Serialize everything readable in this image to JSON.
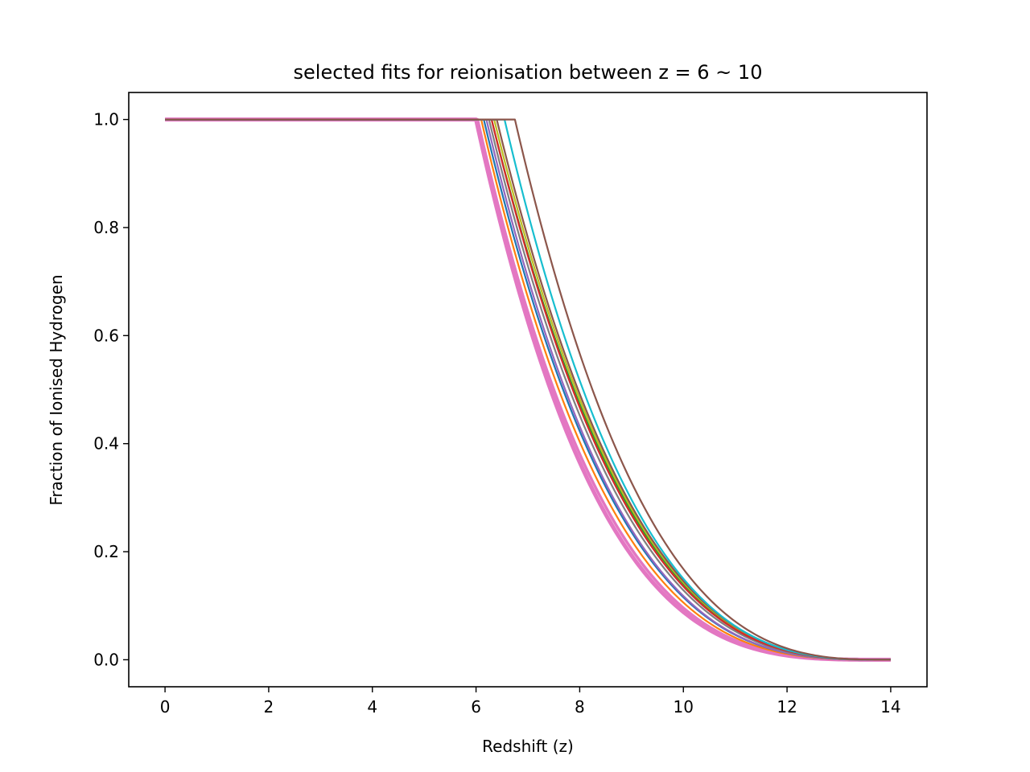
{
  "chart_data": {
    "type": "line",
    "title": "selected fits for reionisation between z = 6 ~ 10",
    "xlabel": "Redshift (z)",
    "ylabel": "Fraction of Ionised Hydrogen",
    "xlim": [
      -0.7,
      14.7
    ],
    "ylim": [
      -0.05,
      1.05
    ],
    "xticks": [
      0,
      2,
      4,
      6,
      8,
      10,
      12,
      14
    ],
    "xtick_labels": [
      "0",
      "2",
      "4",
      "6",
      "8",
      "10",
      "12",
      "14"
    ],
    "yticks": [
      0.0,
      0.2,
      0.4,
      0.6,
      0.8,
      1.0
    ],
    "ytick_labels": [
      "0.0",
      "0.2",
      "0.4",
      "0.6",
      "0.8",
      "1.0"
    ],
    "grid": false,
    "legend": "none",
    "x_range": [
      0,
      14
    ],
    "model": "x_ion = 1 for z <= z_re; x_ion = ((14 - z)/(14 - z_re))^p for z > z_re",
    "series": [
      {
        "color": "#e377c2",
        "z_re": 6.0,
        "p": 3.5,
        "width": 5.0
      },
      {
        "color": "#e377c2",
        "z_re": 6.03,
        "p": 3.4,
        "width": 3.5
      },
      {
        "color": "#ff7f0e",
        "z_re": 6.1,
        "p": 3.3,
        "width": 2.2
      },
      {
        "color": "#1f77b4",
        "z_re": 6.15,
        "p": 3.2,
        "width": 2.2
      },
      {
        "color": "#9467bd",
        "z_re": 6.2,
        "p": 3.2,
        "width": 2.2
      },
      {
        "color": "#7f7f7f",
        "z_re": 6.25,
        "p": 3.1,
        "width": 2.2
      },
      {
        "color": "#2ca02c",
        "z_re": 6.3,
        "p": 3.0,
        "width": 2.2
      },
      {
        "color": "#bcbd22",
        "z_re": 6.35,
        "p": 3.0,
        "width": 2.2
      },
      {
        "color": "#d62728",
        "z_re": 6.3,
        "p": 3.05,
        "width": 2.2
      },
      {
        "color": "#8c564b",
        "z_re": 6.4,
        "p": 3.0,
        "width": 2.2
      },
      {
        "color": "#17becf",
        "z_re": 6.55,
        "p": 3.05,
        "width": 2.2
      },
      {
        "color": "#8c564b",
        "z_re": 6.75,
        "p": 3.0,
        "width": 2.2
      }
    ]
  }
}
